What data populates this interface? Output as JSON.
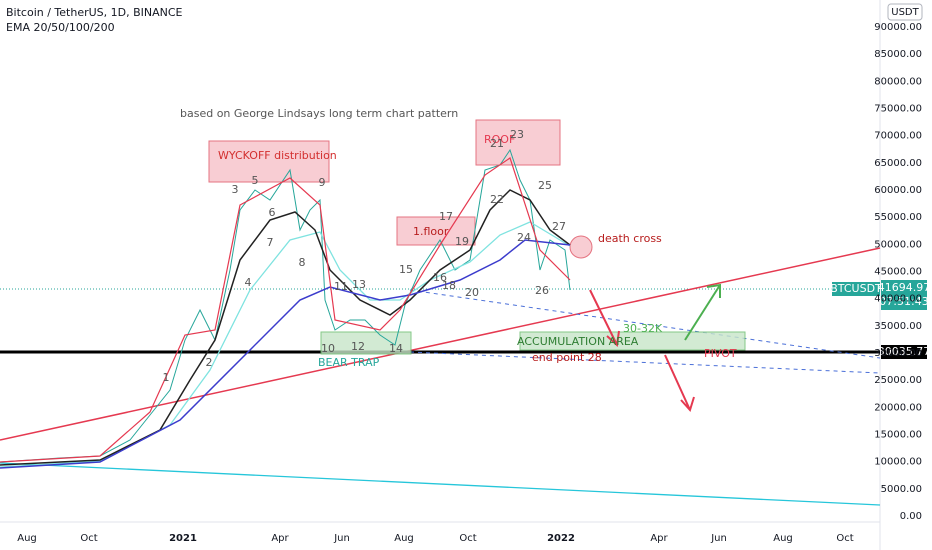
{
  "header": {
    "symbol": "Bitcoin / TetherUS, 1D, BINANCE",
    "indicator": "EMA 20/50/100/200",
    "currency": "USDT"
  },
  "price_axis": [
    "90000.00",
    "85000.00",
    "80000.00",
    "75000.00",
    "70000.00",
    "65000.00",
    "60000.00",
    "55000.00",
    "50000.00",
    "45000.00",
    "40000.00",
    "35000.00",
    "30000.00",
    "25000.00",
    "20000.00",
    "15000.00",
    "10000.00",
    "5000.00",
    "0.00"
  ],
  "time_axis": [
    "Aug",
    "Oct",
    "2021",
    "Apr",
    "Jun",
    "Aug",
    "Oct",
    "2022",
    "Apr",
    "Jun",
    "Aug",
    "Oct"
  ],
  "price_tags": {
    "symbol": "BTCUSDT",
    "price": "41694.97",
    "countdown": "07:51:43",
    "level": "30035.77"
  },
  "annotations": {
    "note": "based on George Lindsays long term chart pattern",
    "wyckoff": "WYCKOFF distribution",
    "roof": "ROOF",
    "floor": "1.floor",
    "death_cross": "death cross",
    "bear_trap": "BEAR TRAP",
    "accumulation": "ACCUMULATION AREA",
    "end_point": "end point 28",
    "range": "30-32K",
    "pivot": "PIVOT"
  },
  "points": [
    "1",
    "2",
    "3",
    "4",
    "5",
    "6",
    "7",
    "8",
    "9",
    "10",
    "11",
    "12",
    "13",
    "14",
    "15",
    "16",
    "17",
    "18",
    "19",
    "20",
    "21",
    "22",
    "23",
    "24",
    "25",
    "26",
    "27"
  ]
}
